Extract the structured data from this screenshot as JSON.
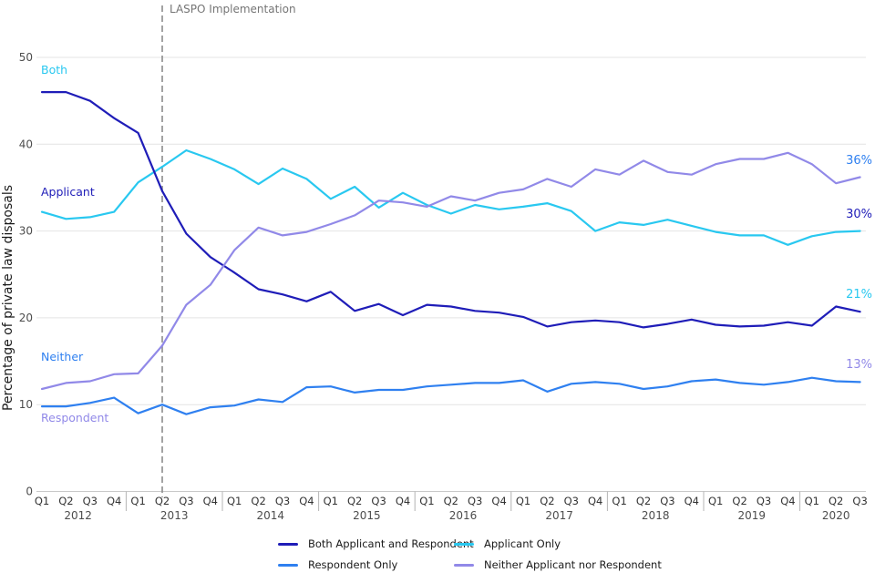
{
  "chart_data": {
    "type": "line",
    "annotation": "LASPO Implementation",
    "ylabel": "Percentage of private law disposals",
    "ylim": [
      0,
      50
    ],
    "yticks": [
      0,
      10,
      20,
      30,
      40,
      50
    ],
    "grid": "horizontal",
    "legend_position": "bottom",
    "annotation_line_quarter_index": 5,
    "x_quarters": [
      "Q1",
      "Q2",
      "Q3",
      "Q4",
      "Q1",
      "Q2",
      "Q3",
      "Q4",
      "Q1",
      "Q2",
      "Q3",
      "Q4",
      "Q1",
      "Q2",
      "Q3",
      "Q4",
      "Q1",
      "Q2",
      "Q3",
      "Q4",
      "Q1",
      "Q2",
      "Q3",
      "Q4",
      "Q1",
      "Q2",
      "Q3",
      "Q4",
      "Q1",
      "Q2",
      "Q3",
      "Q4",
      "Q1",
      "Q2",
      "Q3"
    ],
    "years": [
      {
        "label": "2012",
        "quarters": 4
      },
      {
        "label": "2013",
        "quarters": 4
      },
      {
        "label": "2014",
        "quarters": 4
      },
      {
        "label": "2015",
        "quarters": 4
      },
      {
        "label": "2016",
        "quarters": 4
      },
      {
        "label": "2017",
        "quarters": 4
      },
      {
        "label": "2018",
        "quarters": 4
      },
      {
        "label": "2019",
        "quarters": 4
      },
      {
        "label": "2020",
        "quarters": 3
      }
    ],
    "series": [
      {
        "key": "both",
        "name": "Both Applicant and Respondent",
        "color": "#1f1db8",
        "label_color": "#29c8f0",
        "inline_label": "Both",
        "end_label": "21%",
        "values": [
          46.0,
          46.0,
          45.0,
          43.0,
          41.3,
          34.6,
          29.7,
          27.0,
          25.2,
          23.3,
          22.7,
          21.9,
          23.0,
          20.8,
          21.6,
          20.3,
          21.5,
          21.3,
          20.8,
          20.6,
          20.1,
          19.0,
          19.5,
          19.7,
          19.5,
          18.9,
          19.3,
          19.8,
          19.2,
          19.0,
          19.1,
          19.5,
          19.1,
          21.3,
          20.7
        ]
      },
      {
        "key": "applicant",
        "name": "Applicant Only",
        "color": "#29c8f0",
        "label_color": "#1f1db8",
        "inline_label": "Applicant",
        "end_label": "30%",
        "values": [
          32.2,
          31.4,
          31.6,
          32.2,
          35.6,
          37.4,
          39.3,
          38.3,
          37.1,
          35.4,
          37.2,
          36.0,
          33.7,
          35.1,
          32.7,
          34.4,
          33.0,
          32.0,
          33.0,
          32.5,
          32.8,
          33.2,
          32.3,
          30.0,
          31.0,
          30.7,
          31.3,
          30.6,
          29.9,
          29.5,
          29.5,
          28.4,
          29.4,
          29.9,
          30.0
        ]
      },
      {
        "key": "respondent",
        "name": "Respondent Only",
        "color": "#2f80f0",
        "label_color": "#9189e8",
        "inline_label": "Respondent",
        "end_label": "13%",
        "values": [
          9.8,
          9.8,
          10.2,
          10.8,
          9.0,
          10.0,
          8.9,
          9.7,
          9.9,
          10.6,
          10.3,
          12.0,
          12.1,
          11.4,
          11.7,
          11.7,
          12.1,
          12.3,
          12.5,
          12.5,
          12.8,
          11.5,
          12.4,
          12.6,
          12.4,
          11.8,
          12.1,
          12.7,
          12.9,
          12.5,
          12.3,
          12.6,
          13.1,
          12.7,
          12.6
        ]
      },
      {
        "key": "neither",
        "name": "Neither Applicant nor Respondent",
        "color": "#9189e8",
        "label_color": "#2f80f0",
        "inline_label": "Neither",
        "end_label": "36%",
        "values": [
          11.8,
          12.5,
          12.7,
          13.5,
          13.6,
          16.8,
          21.5,
          23.8,
          27.8,
          30.4,
          29.5,
          29.9,
          30.8,
          31.8,
          33.5,
          33.3,
          32.8,
          34.0,
          33.5,
          34.4,
          34.8,
          36.0,
          35.1,
          37.1,
          36.5,
          38.1,
          36.8,
          36.5,
          37.7,
          38.3,
          38.3,
          39.0,
          37.7,
          35.5,
          36.2
        ]
      }
    ]
  }
}
